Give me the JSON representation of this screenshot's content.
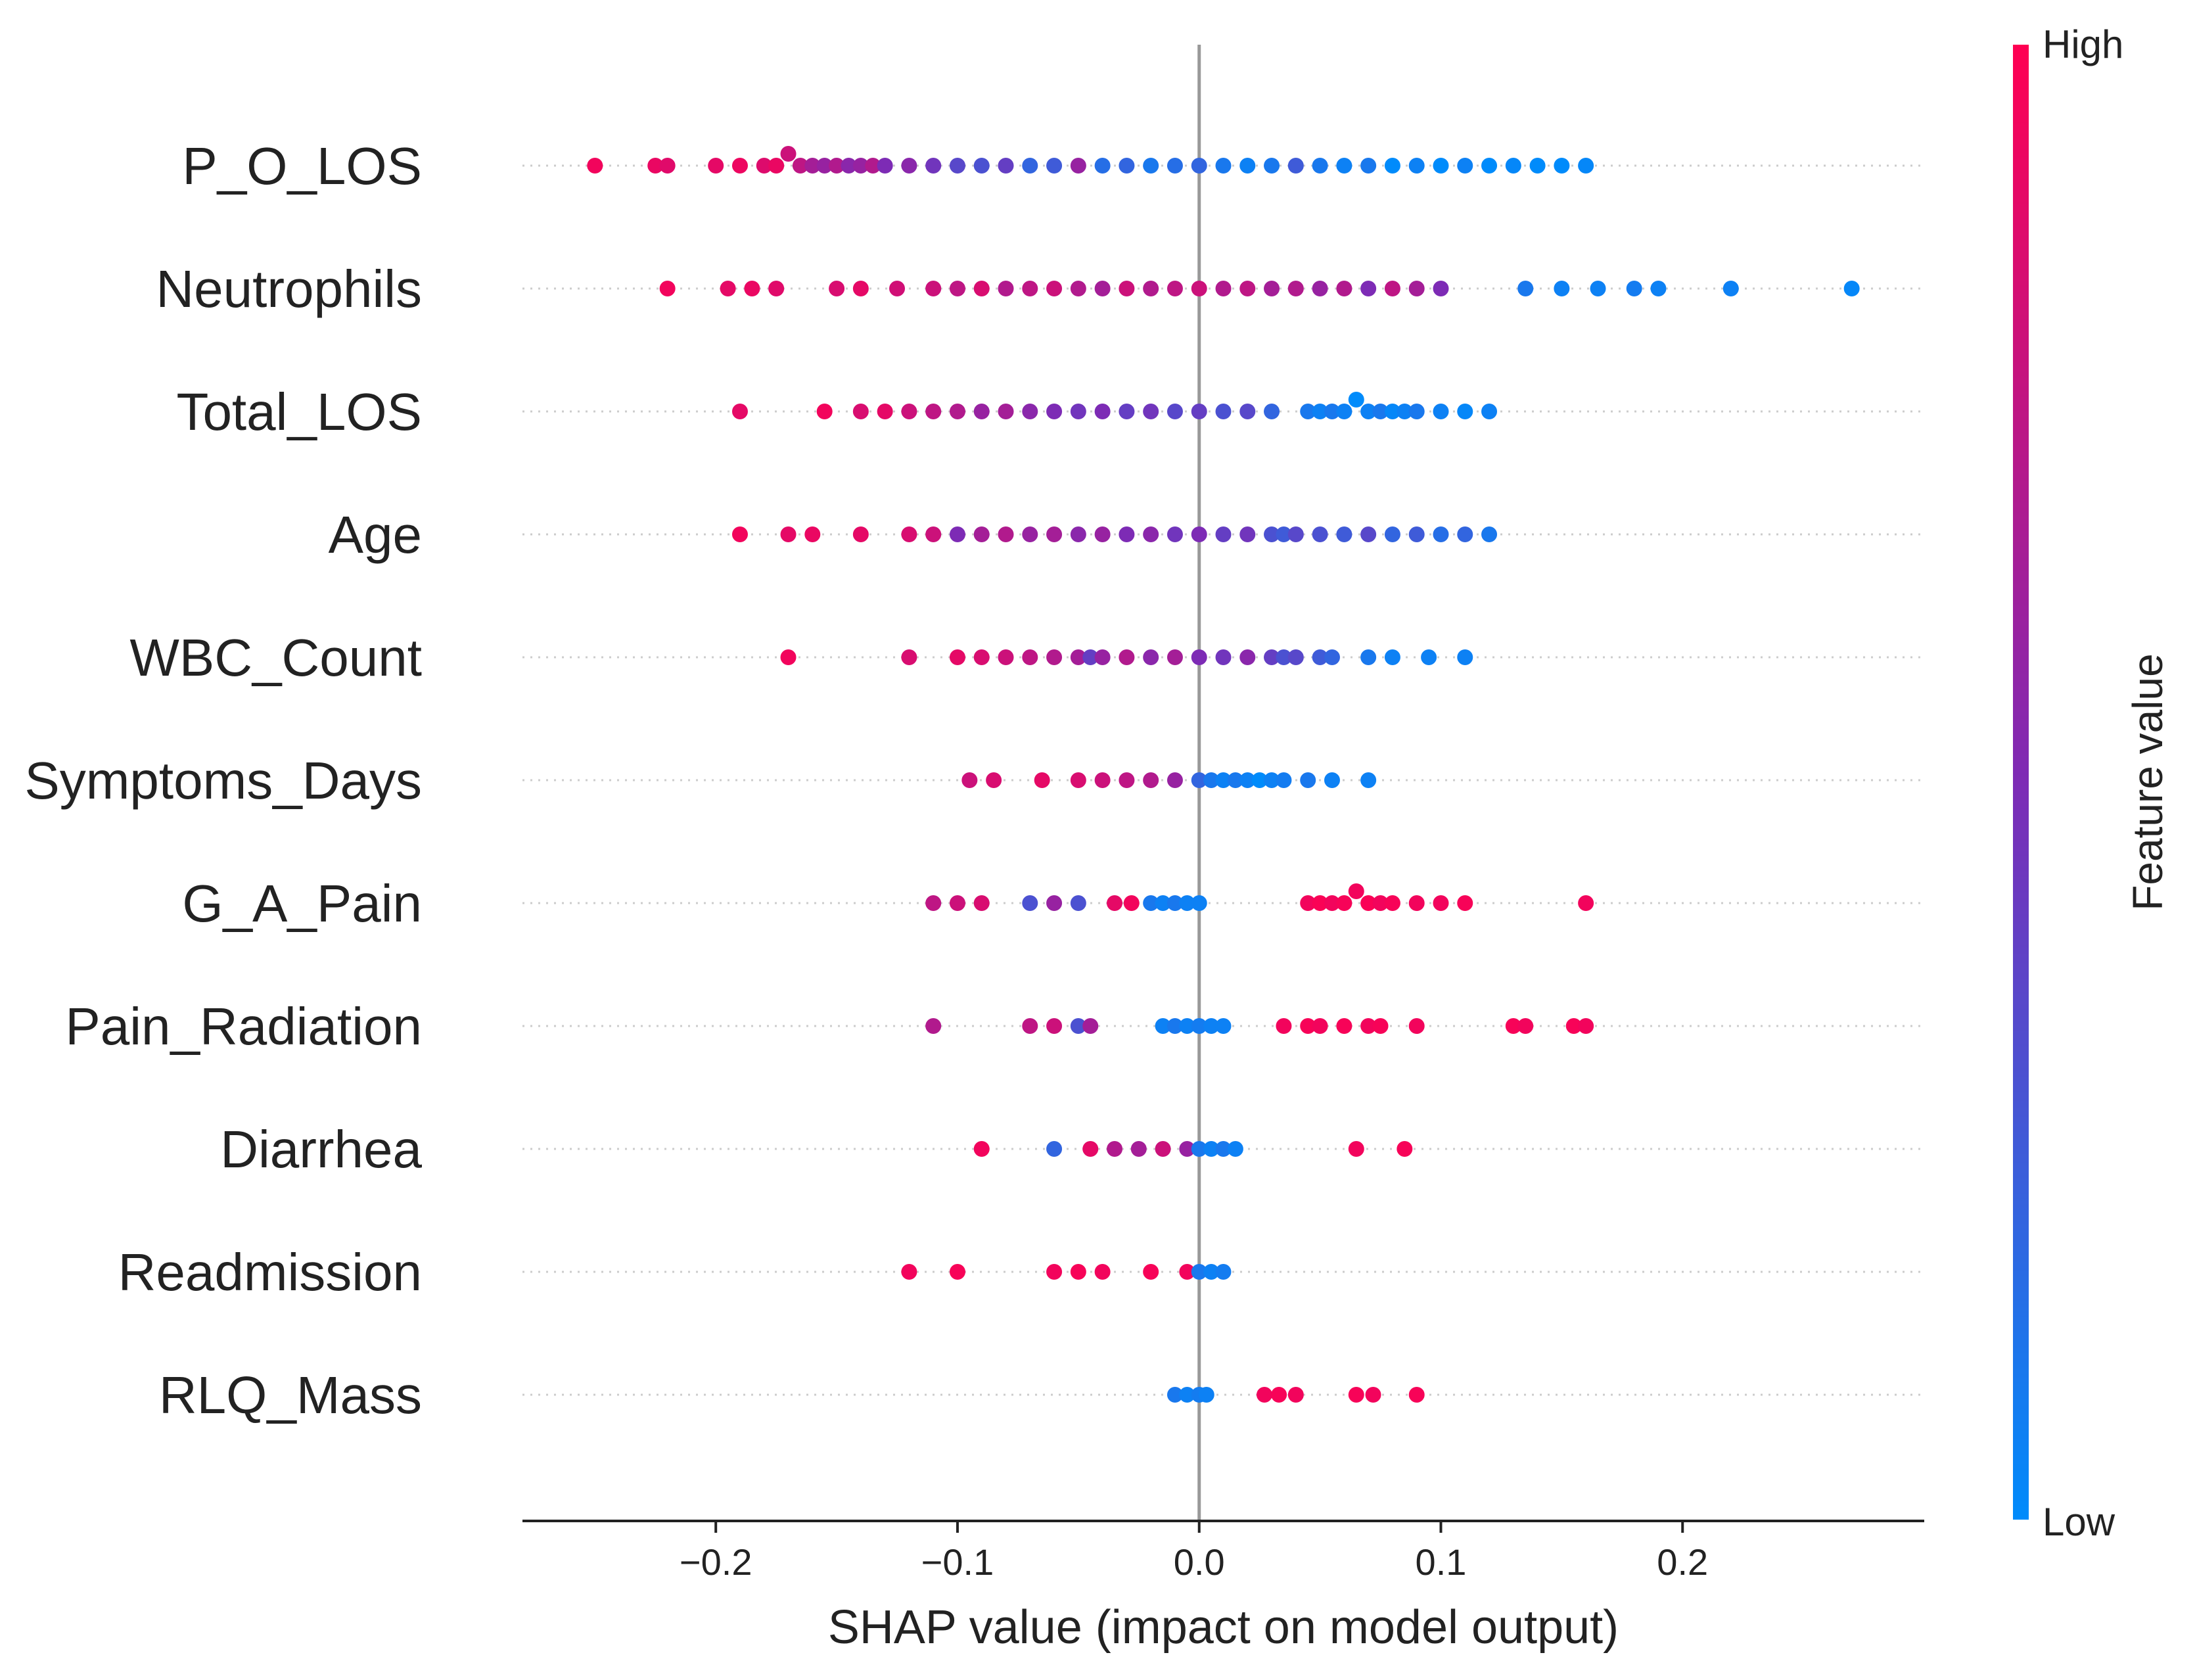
{
  "chart_data": {
    "type": "scatter",
    "subtype": "shap-beeswarm-summary",
    "title": "",
    "xlabel": "SHAP value (impact on model output)",
    "xlim": [
      -0.28,
      0.3
    ],
    "xticks": [
      {
        "value": -0.2,
        "label": "−0.2"
      },
      {
        "value": -0.1,
        "label": "−0.1"
      },
      {
        "value": 0.0,
        "label": "0.0"
      },
      {
        "value": 0.1,
        "label": "0.1"
      },
      {
        "value": 0.2,
        "label": "0.2"
      }
    ],
    "features": [
      {
        "name": "P_O_LOS",
        "points": [
          [
            -0.25,
            0.95
          ],
          [
            -0.225,
            0.92
          ],
          [
            -0.22,
            0.88
          ],
          [
            -0.2,
            0.9
          ],
          [
            -0.19,
            0.93
          ],
          [
            -0.18,
            0.87
          ],
          [
            -0.175,
            0.92
          ],
          [
            -0.17,
            0.8
          ],
          [
            -0.165,
            0.75
          ],
          [
            -0.16,
            0.65
          ],
          [
            -0.155,
            0.6
          ],
          [
            -0.15,
            0.7
          ],
          [
            -0.145,
            0.55
          ],
          [
            -0.14,
            0.6
          ],
          [
            -0.135,
            0.7
          ],
          [
            -0.13,
            0.5
          ],
          [
            -0.12,
            0.55
          ],
          [
            -0.11,
            0.45
          ],
          [
            -0.1,
            0.35
          ],
          [
            -0.09,
            0.3
          ],
          [
            -0.08,
            0.4
          ],
          [
            -0.07,
            0.2
          ],
          [
            -0.06,
            0.25
          ],
          [
            -0.05,
            0.6
          ],
          [
            -0.04,
            0.15
          ],
          [
            -0.03,
            0.2
          ],
          [
            -0.02,
            0.1
          ],
          [
            -0.01,
            0.15
          ],
          [
            0.0,
            0.2
          ],
          [
            0.01,
            0.1
          ],
          [
            0.02,
            0.05
          ],
          [
            0.03,
            0.1
          ],
          [
            0.04,
            0.25
          ],
          [
            0.05,
            0.1
          ],
          [
            0.06,
            0.05
          ],
          [
            0.07,
            0.1
          ],
          [
            0.08,
            0.0
          ],
          [
            0.09,
            0.05
          ],
          [
            0.1,
            0.0
          ],
          [
            0.11,
            0.05
          ],
          [
            0.12,
            0.0
          ],
          [
            0.13,
            0.02
          ],
          [
            0.14,
            0.0
          ],
          [
            0.15,
            0.0
          ],
          [
            0.16,
            0.02
          ]
        ]
      },
      {
        "name": "Neutrophils",
        "points": [
          [
            -0.22,
            0.95
          ],
          [
            -0.195,
            0.9
          ],
          [
            -0.185,
            0.92
          ],
          [
            -0.175,
            0.88
          ],
          [
            -0.15,
            0.85
          ],
          [
            -0.14,
            0.9
          ],
          [
            -0.125,
            0.82
          ],
          [
            -0.11,
            0.8
          ],
          [
            -0.1,
            0.75
          ],
          [
            -0.09,
            0.85
          ],
          [
            -0.08,
            0.7
          ],
          [
            -0.07,
            0.75
          ],
          [
            -0.06,
            0.8
          ],
          [
            -0.05,
            0.7
          ],
          [
            -0.04,
            0.65
          ],
          [
            -0.03,
            0.8
          ],
          [
            -0.02,
            0.7
          ],
          [
            -0.01,
            0.75
          ],
          [
            0.0,
            0.8
          ],
          [
            0.01,
            0.7
          ],
          [
            0.02,
            0.75
          ],
          [
            0.03,
            0.65
          ],
          [
            0.04,
            0.7
          ],
          [
            0.05,
            0.6
          ],
          [
            0.06,
            0.7
          ],
          [
            0.07,
            0.5
          ],
          [
            0.08,
            0.75
          ],
          [
            0.09,
            0.65
          ],
          [
            0.1,
            0.5
          ],
          [
            0.135,
            0.1
          ],
          [
            0.15,
            0.05
          ],
          [
            0.165,
            0.05
          ],
          [
            0.18,
            0.08
          ],
          [
            0.19,
            0.05
          ],
          [
            0.22,
            0.05
          ],
          [
            0.27,
            0.02
          ]
        ]
      },
      {
        "name": "Total_LOS",
        "points": [
          [
            -0.19,
            0.9
          ],
          [
            -0.155,
            0.95
          ],
          [
            -0.14,
            0.85
          ],
          [
            -0.13,
            0.9
          ],
          [
            -0.12,
            0.8
          ],
          [
            -0.11,
            0.75
          ],
          [
            -0.1,
            0.7
          ],
          [
            -0.09,
            0.6
          ],
          [
            -0.08,
            0.65
          ],
          [
            -0.07,
            0.55
          ],
          [
            -0.06,
            0.5
          ],
          [
            -0.05,
            0.45
          ],
          [
            -0.04,
            0.5
          ],
          [
            -0.03,
            0.4
          ],
          [
            -0.02,
            0.45
          ],
          [
            -0.01,
            0.35
          ],
          [
            0.0,
            0.4
          ],
          [
            0.01,
            0.3
          ],
          [
            0.02,
            0.35
          ],
          [
            0.03,
            0.2
          ],
          [
            0.045,
            0.1
          ],
          [
            0.05,
            0.05
          ],
          [
            0.055,
            0.1
          ],
          [
            0.06,
            0.05
          ],
          [
            0.065,
            0.0
          ],
          [
            0.07,
            0.05
          ],
          [
            0.075,
            0.1
          ],
          [
            0.08,
            0.02
          ],
          [
            0.085,
            0.05
          ],
          [
            0.09,
            0.1
          ],
          [
            0.1,
            0.05
          ],
          [
            0.11,
            0.02
          ],
          [
            0.12,
            0.05
          ]
        ]
      },
      {
        "name": "Age",
        "points": [
          [
            -0.19,
            0.95
          ],
          [
            -0.17,
            0.9
          ],
          [
            -0.16,
            0.92
          ],
          [
            -0.14,
            0.9
          ],
          [
            -0.12,
            0.85
          ],
          [
            -0.11,
            0.8
          ],
          [
            -0.1,
            0.5
          ],
          [
            -0.09,
            0.65
          ],
          [
            -0.08,
            0.7
          ],
          [
            -0.07,
            0.6
          ],
          [
            -0.06,
            0.65
          ],
          [
            -0.05,
            0.55
          ],
          [
            -0.04,
            0.6
          ],
          [
            -0.03,
            0.5
          ],
          [
            -0.02,
            0.55
          ],
          [
            -0.01,
            0.45
          ],
          [
            0.0,
            0.5
          ],
          [
            0.01,
            0.4
          ],
          [
            0.02,
            0.45
          ],
          [
            0.03,
            0.3
          ],
          [
            0.035,
            0.25
          ],
          [
            0.04,
            0.35
          ],
          [
            0.05,
            0.3
          ],
          [
            0.06,
            0.25
          ],
          [
            0.07,
            0.35
          ],
          [
            0.08,
            0.2
          ],
          [
            0.09,
            0.25
          ],
          [
            0.1,
            0.15
          ],
          [
            0.11,
            0.2
          ],
          [
            0.12,
            0.1
          ]
        ]
      },
      {
        "name": "WBC_Count",
        "points": [
          [
            -0.17,
            0.95
          ],
          [
            -0.12,
            0.85
          ],
          [
            -0.1,
            0.9
          ],
          [
            -0.09,
            0.85
          ],
          [
            -0.08,
            0.8
          ],
          [
            -0.07,
            0.75
          ],
          [
            -0.06,
            0.7
          ],
          [
            -0.05,
            0.65
          ],
          [
            -0.045,
            0.4
          ],
          [
            -0.04,
            0.6
          ],
          [
            -0.03,
            0.7
          ],
          [
            -0.02,
            0.55
          ],
          [
            -0.01,
            0.65
          ],
          [
            0.0,
            0.5
          ],
          [
            0.01,
            0.45
          ],
          [
            0.02,
            0.55
          ],
          [
            0.03,
            0.4
          ],
          [
            0.035,
            0.3
          ],
          [
            0.04,
            0.35
          ],
          [
            0.05,
            0.25
          ],
          [
            0.055,
            0.2
          ],
          [
            0.07,
            0.1
          ],
          [
            0.08,
            0.05
          ],
          [
            0.095,
            0.05
          ],
          [
            0.11,
            0.05
          ]
        ]
      },
      {
        "name": "Symptoms_Days",
        "points": [
          [
            -0.095,
            0.8
          ],
          [
            -0.085,
            0.85
          ],
          [
            -0.065,
            0.9
          ],
          [
            -0.05,
            0.85
          ],
          [
            -0.04,
            0.8
          ],
          [
            -0.03,
            0.75
          ],
          [
            -0.02,
            0.7
          ],
          [
            -0.01,
            0.6
          ],
          [
            0.0,
            0.2
          ],
          [
            0.005,
            0.1
          ],
          [
            0.01,
            0.05
          ],
          [
            0.015,
            0.1
          ],
          [
            0.02,
            0.05
          ],
          [
            0.025,
            0.0
          ],
          [
            0.03,
            0.05
          ],
          [
            0.035,
            0.08
          ],
          [
            0.045,
            0.1
          ],
          [
            0.055,
            0.05
          ],
          [
            0.07,
            0.05
          ]
        ]
      },
      {
        "name": "G_A_Pain",
        "points": [
          [
            -0.11,
            0.75
          ],
          [
            -0.1,
            0.8
          ],
          [
            -0.09,
            0.85
          ],
          [
            -0.07,
            0.3
          ],
          [
            -0.06,
            0.6
          ],
          [
            -0.05,
            0.3
          ],
          [
            -0.035,
            0.9
          ],
          [
            -0.028,
            0.95
          ],
          [
            -0.02,
            0.1
          ],
          [
            -0.015,
            0.05
          ],
          [
            -0.01,
            0.1
          ],
          [
            -0.005,
            0.05
          ],
          [
            0.0,
            0.05
          ],
          [
            0.045,
            0.95
          ],
          [
            0.05,
            0.98
          ],
          [
            0.055,
            0.95
          ],
          [
            0.06,
            0.97
          ],
          [
            0.065,
            0.95
          ],
          [
            0.07,
            0.98
          ],
          [
            0.075,
            0.95
          ],
          [
            0.08,
            0.97
          ],
          [
            0.09,
            0.95
          ],
          [
            0.1,
            0.95
          ],
          [
            0.11,
            0.97
          ],
          [
            0.16,
            0.95
          ]
        ]
      },
      {
        "name": "Pain_Radiation",
        "points": [
          [
            -0.11,
            0.7
          ],
          [
            -0.07,
            0.75
          ],
          [
            -0.06,
            0.8
          ],
          [
            -0.05,
            0.3
          ],
          [
            -0.045,
            0.65
          ],
          [
            -0.015,
            0.05
          ],
          [
            -0.01,
            0.1
          ],
          [
            -0.005,
            0.05
          ],
          [
            0.0,
            0.08
          ],
          [
            0.005,
            0.05
          ],
          [
            0.01,
            0.05
          ],
          [
            0.035,
            0.95
          ],
          [
            0.045,
            0.97
          ],
          [
            0.05,
            0.95
          ],
          [
            0.06,
            0.97
          ],
          [
            0.07,
            0.95
          ],
          [
            0.075,
            0.97
          ],
          [
            0.09,
            0.95
          ],
          [
            0.13,
            0.97
          ],
          [
            0.135,
            0.95
          ],
          [
            0.155,
            0.97
          ],
          [
            0.16,
            0.95
          ]
        ]
      },
      {
        "name": "Diarrhea",
        "points": [
          [
            -0.09,
            0.95
          ],
          [
            -0.06,
            0.2
          ],
          [
            -0.045,
            0.9
          ],
          [
            -0.035,
            0.7
          ],
          [
            -0.025,
            0.65
          ],
          [
            -0.015,
            0.8
          ],
          [
            -0.005,
            0.6
          ],
          [
            0.0,
            0.1
          ],
          [
            0.005,
            0.05
          ],
          [
            0.01,
            0.1
          ],
          [
            0.015,
            0.05
          ],
          [
            0.065,
            0.95
          ],
          [
            0.085,
            0.97
          ]
        ]
      },
      {
        "name": "Readmission",
        "points": [
          [
            -0.12,
            0.95
          ],
          [
            -0.1,
            0.97
          ],
          [
            -0.06,
            0.95
          ],
          [
            -0.05,
            0.97
          ],
          [
            -0.04,
            0.95
          ],
          [
            -0.02,
            0.97
          ],
          [
            -0.005,
            0.95
          ],
          [
            0.0,
            0.1
          ],
          [
            0.005,
            0.05
          ],
          [
            0.01,
            0.08
          ]
        ]
      },
      {
        "name": "RLQ_Mass",
        "points": [
          [
            -0.01,
            0.1
          ],
          [
            -0.005,
            0.05
          ],
          [
            0.0,
            0.08
          ],
          [
            0.003,
            0.05
          ],
          [
            0.027,
            0.95
          ],
          [
            0.033,
            0.97
          ],
          [
            0.04,
            0.95
          ],
          [
            0.065,
            0.97
          ],
          [
            0.072,
            0.95
          ],
          [
            0.09,
            0.97
          ]
        ]
      }
    ],
    "colorbar": {
      "title": "Feature value",
      "high_label": "High",
      "low_label": "Low",
      "high_color": "#ff0052",
      "mid_color": "#7d2bb5",
      "low_color": "#008bfb"
    },
    "legend_position": "right"
  }
}
